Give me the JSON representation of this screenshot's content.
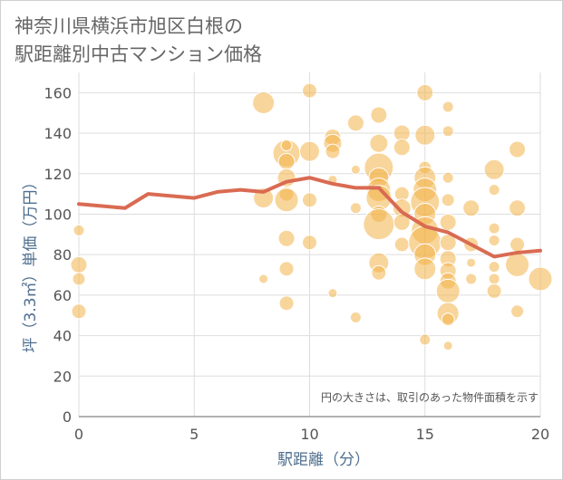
{
  "chart_data": {
    "type": "scatter",
    "title_line1": "神奈川県横浜市旭区白根の",
    "title_line2": "駅距離別中古マンション価格",
    "xlabel": "駅距離（分）",
    "ylabel": "坪（3.3㎡）単価（万円）",
    "xlim": [
      0,
      20
    ],
    "ylim": [
      0,
      170
    ],
    "xticks": [
      0,
      5,
      10,
      15,
      20
    ],
    "yticks": [
      0,
      20,
      40,
      60,
      80,
      100,
      120,
      140,
      160
    ],
    "note": "円の大きさは、取引のあった物件面積を示す",
    "colors": {
      "bubble": "#f2b248",
      "line": "#d96b52",
      "grid": "#dddddd"
    },
    "bubbles": [
      {
        "x": 0,
        "y": 92,
        "r": 6
      },
      {
        "x": 0,
        "y": 75,
        "r": 9
      },
      {
        "x": 0,
        "y": 68,
        "r": 7
      },
      {
        "x": 0,
        "y": 52,
        "r": 8
      },
      {
        "x": 8,
        "y": 155,
        "r": 12
      },
      {
        "x": 8,
        "y": 108,
        "r": 11
      },
      {
        "x": 8,
        "y": 68,
        "r": 5
      },
      {
        "x": 9,
        "y": 130,
        "r": 15
      },
      {
        "x": 9,
        "y": 134,
        "r": 6
      },
      {
        "x": 9,
        "y": 126,
        "r": 9
      },
      {
        "x": 9,
        "y": 118,
        "r": 10
      },
      {
        "x": 9,
        "y": 110,
        "r": 8
      },
      {
        "x": 9,
        "y": 107,
        "r": 13
      },
      {
        "x": 9,
        "y": 88,
        "r": 9
      },
      {
        "x": 9,
        "y": 73,
        "r": 8
      },
      {
        "x": 9,
        "y": 56,
        "r": 8
      },
      {
        "x": 10,
        "y": 161,
        "r": 8
      },
      {
        "x": 10,
        "y": 131,
        "r": 11
      },
      {
        "x": 10,
        "y": 107,
        "r": 8
      },
      {
        "x": 10,
        "y": 86,
        "r": 8
      },
      {
        "x": 11,
        "y": 138,
        "r": 9
      },
      {
        "x": 11,
        "y": 135,
        "r": 10
      },
      {
        "x": 11,
        "y": 131,
        "r": 8
      },
      {
        "x": 11,
        "y": 117,
        "r": 5
      },
      {
        "x": 11,
        "y": 61,
        "r": 5
      },
      {
        "x": 12,
        "y": 145,
        "r": 9
      },
      {
        "x": 12,
        "y": 122,
        "r": 5
      },
      {
        "x": 12,
        "y": 103,
        "r": 6
      },
      {
        "x": 12,
        "y": 49,
        "r": 6
      },
      {
        "x": 13,
        "y": 149,
        "r": 9
      },
      {
        "x": 13,
        "y": 135,
        "r": 10
      },
      {
        "x": 13,
        "y": 123,
        "r": 16
      },
      {
        "x": 13,
        "y": 118,
        "r": 11
      },
      {
        "x": 13,
        "y": 112,
        "r": 13
      },
      {
        "x": 13,
        "y": 108,
        "r": 14
      },
      {
        "x": 13,
        "y": 100,
        "r": 9
      },
      {
        "x": 13,
        "y": 95,
        "r": 17
      },
      {
        "x": 13,
        "y": 76,
        "r": 11
      },
      {
        "x": 13,
        "y": 71,
        "r": 8
      },
      {
        "x": 14,
        "y": 140,
        "r": 9
      },
      {
        "x": 14,
        "y": 133,
        "r": 9
      },
      {
        "x": 14,
        "y": 110,
        "r": 8
      },
      {
        "x": 14,
        "y": 103,
        "r": 10
      },
      {
        "x": 14,
        "y": 96,
        "r": 9
      },
      {
        "x": 14,
        "y": 85,
        "r": 8
      },
      {
        "x": 15,
        "y": 160,
        "r": 9
      },
      {
        "x": 15,
        "y": 139,
        "r": 11
      },
      {
        "x": 15,
        "y": 123,
        "r": 7
      },
      {
        "x": 15,
        "y": 118,
        "r": 12
      },
      {
        "x": 15,
        "y": 112,
        "r": 13
      },
      {
        "x": 15,
        "y": 106,
        "r": 16
      },
      {
        "x": 15,
        "y": 100,
        "r": 12
      },
      {
        "x": 15,
        "y": 92,
        "r": 15
      },
      {
        "x": 15,
        "y": 86,
        "r": 18
      },
      {
        "x": 15,
        "y": 80,
        "r": 12
      },
      {
        "x": 15,
        "y": 73,
        "r": 12
      },
      {
        "x": 15,
        "y": 38,
        "r": 6
      },
      {
        "x": 16,
        "y": 153,
        "r": 6
      },
      {
        "x": 16,
        "y": 141,
        "r": 6
      },
      {
        "x": 16,
        "y": 118,
        "r": 6
      },
      {
        "x": 16,
        "y": 107,
        "r": 7
      },
      {
        "x": 16,
        "y": 96,
        "r": 9
      },
      {
        "x": 16,
        "y": 86,
        "r": 9
      },
      {
        "x": 16,
        "y": 78,
        "r": 9
      },
      {
        "x": 16,
        "y": 72,
        "r": 9
      },
      {
        "x": 16,
        "y": 67,
        "r": 9
      },
      {
        "x": 16,
        "y": 62,
        "r": 13
      },
      {
        "x": 16,
        "y": 51,
        "r": 12
      },
      {
        "x": 16,
        "y": 48,
        "r": 7
      },
      {
        "x": 16,
        "y": 35,
        "r": 5
      },
      {
        "x": 17,
        "y": 103,
        "r": 9
      },
      {
        "x": 17,
        "y": 85,
        "r": 8
      },
      {
        "x": 17,
        "y": 76,
        "r": 5
      },
      {
        "x": 17,
        "y": 68,
        "r": 6
      },
      {
        "x": 18,
        "y": 122,
        "r": 11
      },
      {
        "x": 18,
        "y": 112,
        "r": 6
      },
      {
        "x": 18,
        "y": 93,
        "r": 6
      },
      {
        "x": 18,
        "y": 87,
        "r": 6
      },
      {
        "x": 18,
        "y": 74,
        "r": 6
      },
      {
        "x": 18,
        "y": 68,
        "r": 6
      },
      {
        "x": 18,
        "y": 62,
        "r": 8
      },
      {
        "x": 19,
        "y": 132,
        "r": 9
      },
      {
        "x": 19,
        "y": 103,
        "r": 9
      },
      {
        "x": 19,
        "y": 85,
        "r": 8
      },
      {
        "x": 19,
        "y": 75,
        "r": 13
      },
      {
        "x": 19,
        "y": 52,
        "r": 7
      },
      {
        "x": 20,
        "y": 68,
        "r": 13
      }
    ],
    "trend_line": {
      "x": [
        0,
        1,
        2,
        3,
        4,
        5,
        6,
        7,
        8,
        9,
        10,
        11,
        12,
        13,
        14,
        15,
        16,
        17,
        18,
        19,
        20
      ],
      "y": [
        105,
        104,
        103,
        110,
        109,
        108,
        111,
        112,
        111,
        116,
        118,
        115,
        113,
        113,
        101,
        94,
        91,
        85,
        79,
        81,
        82
      ]
    }
  }
}
